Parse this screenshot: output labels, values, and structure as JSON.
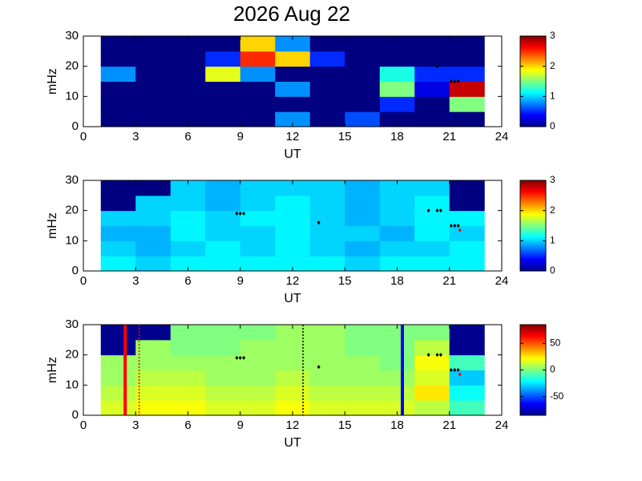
{
  "chart_data": [
    {
      "type": "heatmap",
      "title": "2026 Aug 22",
      "xlabel": "UT",
      "ylabel": "mHz",
      "xlim": [
        0,
        24
      ],
      "xticks": [
        0,
        3,
        6,
        9,
        12,
        15,
        18,
        21,
        24
      ],
      "ylim": [
        0,
        30
      ],
      "yticks": [
        0,
        10,
        20,
        30
      ],
      "colormap": "jet",
      "clim": [
        0,
        3
      ],
      "cticks": [
        0,
        1,
        2,
        3
      ],
      "xbins": [
        1,
        3,
        5,
        7,
        9,
        11,
        13,
        15,
        17,
        19,
        21,
        23
      ],
      "ybins": [
        0,
        5,
        10,
        15,
        20,
        25,
        30
      ],
      "z": [
        [
          0,
          0,
          0,
          0,
          0,
          0.8,
          0,
          0.6,
          0,
          0,
          0
        ],
        [
          0,
          0,
          0,
          0,
          0,
          0,
          0,
          0,
          0.5,
          0,
          1.5
        ],
        [
          0,
          0,
          0,
          0,
          0,
          0.8,
          0,
          0,
          1.5,
          0.3,
          2.8
        ],
        [
          0.8,
          0,
          0,
          1.8,
          0.8,
          0,
          0,
          0,
          1.2,
          0.5,
          0.5
        ],
        [
          0,
          0,
          0,
          0.5,
          2.5,
          2,
          0.5,
          0,
          0,
          0,
          0
        ],
        [
          0,
          0,
          0,
          0,
          2,
          0.8,
          0,
          0,
          0,
          0,
          0
        ]
      ],
      "points": [
        {
          "color": "#000000",
          "x": [
            20.3,
            21.1,
            21.3,
            21.5
          ],
          "y": [
            20,
            15,
            15,
            15
          ]
        }
      ]
    },
    {
      "type": "heatmap",
      "xlabel": "UT",
      "ylabel": "mHz",
      "xlim": [
        0,
        24
      ],
      "xticks": [
        0,
        3,
        6,
        9,
        12,
        15,
        18,
        21,
        24
      ],
      "ylim": [
        0,
        30
      ],
      "yticks": [
        0,
        10,
        20,
        30
      ],
      "colormap": "jet",
      "clim": [
        0,
        3
      ],
      "cticks": [
        0,
        1,
        2,
        3
      ],
      "xbins": [
        1,
        3,
        5,
        7,
        9,
        11,
        13,
        15,
        17,
        19,
        21,
        23
      ],
      "ybins": [
        0,
        5,
        10,
        15,
        20,
        25,
        30
      ],
      "z": [
        [
          1.1,
          1.0,
          1.1,
          1.1,
          1.1,
          1.1,
          1.1,
          1.0,
          1.1,
          1.1,
          1.1
        ],
        [
          1.0,
          0.9,
          1.0,
          1.1,
          1.0,
          1.1,
          1.0,
          0.9,
          1.0,
          1.0,
          1.1
        ],
        [
          0.9,
          0.9,
          1.1,
          1.0,
          1.0,
          1.1,
          1.0,
          1.0,
          0.9,
          1.1,
          1.0
        ],
        [
          1.0,
          1.0,
          1.1,
          1.0,
          1.1,
          1.1,
          1.0,
          0.9,
          1.0,
          1.1,
          1.1
        ],
        [
          0,
          1.0,
          1.0,
          0.9,
          1.0,
          1.1,
          1.0,
          0.9,
          1.0,
          1.1,
          0
        ],
        [
          0,
          0,
          1.0,
          0.9,
          1.0,
          1.0,
          1.0,
          0.9,
          1.0,
          1.0,
          0
        ]
      ],
      "points": [
        {
          "color": "#000000",
          "x": [
            8.8,
            9.0,
            9.2,
            13.5,
            19.8,
            20.3,
            20.5,
            21.1,
            21.3,
            21.5
          ],
          "y": [
            19,
            19,
            19,
            16,
            20,
            20,
            20,
            15,
            15,
            15
          ]
        },
        {
          "color": "#ff0000",
          "x": [
            21.6
          ],
          "y": [
            13.5
          ]
        }
      ]
    },
    {
      "type": "heatmap",
      "xlabel": "UT",
      "ylabel": "mHz",
      "xlim": [
        0,
        24
      ],
      "xticks": [
        0,
        3,
        6,
        9,
        12,
        15,
        18,
        21,
        24
      ],
      "ylim": [
        0,
        30
      ],
      "yticks": [
        0,
        10,
        20,
        30
      ],
      "colormap": "jet",
      "clim": [
        -85,
        85
      ],
      "cticks": [
        -50,
        0,
        50
      ],
      "nan_color": "#00008f",
      "xbins": [
        1,
        3,
        5,
        7,
        9,
        11,
        13,
        15,
        17,
        19,
        21,
        23
      ],
      "ybins": [
        0,
        5,
        10,
        15,
        20,
        25,
        30
      ],
      "z": [
        [
          15,
          20,
          20,
          15,
          15,
          20,
          15,
          15,
          15,
          10,
          -10
        ],
        [
          10,
          15,
          15,
          10,
          10,
          15,
          10,
          10,
          10,
          25,
          -20
        ],
        [
          5,
          10,
          10,
          5,
          5,
          10,
          5,
          5,
          5,
          15,
          -30
        ],
        [
          5,
          5,
          5,
          5,
          5,
          5,
          5,
          5,
          0,
          20,
          -10
        ],
        [
          null,
          5,
          0,
          0,
          5,
          5,
          5,
          0,
          0,
          10,
          null
        ],
        [
          null,
          null,
          0,
          0,
          0,
          5,
          5,
          0,
          0,
          0,
          null
        ]
      ],
      "points": [
        {
          "color": "#000000",
          "x": [
            8.8,
            9.0,
            9.2,
            13.5,
            19.8,
            20.3,
            20.5,
            21.1,
            21.3,
            21.5
          ],
          "y": [
            19,
            19,
            19,
            16,
            20,
            20,
            20,
            15,
            15,
            15
          ]
        },
        {
          "color": "#ff0000",
          "x": [
            21.6
          ],
          "y": [
            13.5
          ]
        }
      ],
      "vlines": [
        {
          "x": 2.4,
          "color": "#ff0000",
          "style": "solid"
        },
        {
          "x": 3.2,
          "color": "#ff0000",
          "style": "dotted"
        },
        {
          "x": 12.6,
          "color": "#000000",
          "style": "dotted"
        },
        {
          "x": 18.3,
          "color": "#0000ff",
          "style": "solid"
        }
      ]
    }
  ]
}
